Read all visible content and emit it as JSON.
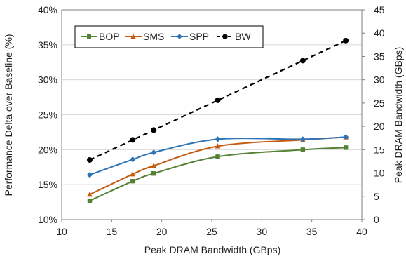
{
  "chart_data": {
    "type": "line",
    "title": "",
    "xlabel": "Peak DRAM Bandwidth (GBps)",
    "ylabel": "Performance Delta over Baseline (%)",
    "y2label": "Peak DRAM Bandwidth (GBps)",
    "xlim": [
      10,
      40
    ],
    "ylim": [
      10,
      40
    ],
    "y2lim": [
      0,
      45
    ],
    "x_ticks": [
      10,
      15,
      20,
      25,
      30,
      35,
      40
    ],
    "y_ticks": [
      10,
      15,
      20,
      25,
      30,
      35,
      40
    ],
    "y2_ticks": [
      0,
      5,
      10,
      15,
      20,
      25,
      30,
      35,
      40,
      45
    ],
    "x_tick_labels": [
      "10",
      "15",
      "20",
      "25",
      "30",
      "35",
      "40"
    ],
    "y_tick_labels": [
      "10%",
      "15%",
      "20%",
      "25%",
      "30%",
      "35%",
      "40%"
    ],
    "y2_tick_labels": [
      "0",
      "5",
      "10",
      "15",
      "20",
      "25",
      "30",
      "35",
      "40",
      "45"
    ],
    "grid": "horizontal",
    "legend_position": "top-left",
    "x": [
      12.8,
      17.1,
      19.2,
      25.6,
      34.1,
      38.4
    ],
    "series": [
      {
        "name": "BOP",
        "axis": "left",
        "values": [
          12.7,
          15.5,
          16.6,
          19.0,
          20.0,
          20.3
        ],
        "color": "#548235",
        "marker": "square",
        "dash": "solid",
        "smooth": true
      },
      {
        "name": "SMS",
        "axis": "left",
        "values": [
          13.6,
          16.5,
          17.7,
          20.5,
          21.4,
          21.8
        ],
        "color": "#c55a11",
        "marker": "triangle",
        "dash": "solid",
        "smooth": true
      },
      {
        "name": "SPP",
        "axis": "left",
        "values": [
          16.4,
          18.6,
          19.6,
          21.5,
          21.5,
          21.8
        ],
        "color": "#2e75b6",
        "marker": "diamond",
        "dash": "solid",
        "smooth": true
      },
      {
        "name": "BW",
        "axis": "right",
        "values": [
          12.8,
          17.1,
          19.2,
          25.6,
          34.1,
          38.4
        ],
        "color": "#000000",
        "marker": "circle",
        "dash": "dashed",
        "smooth": false
      }
    ]
  }
}
